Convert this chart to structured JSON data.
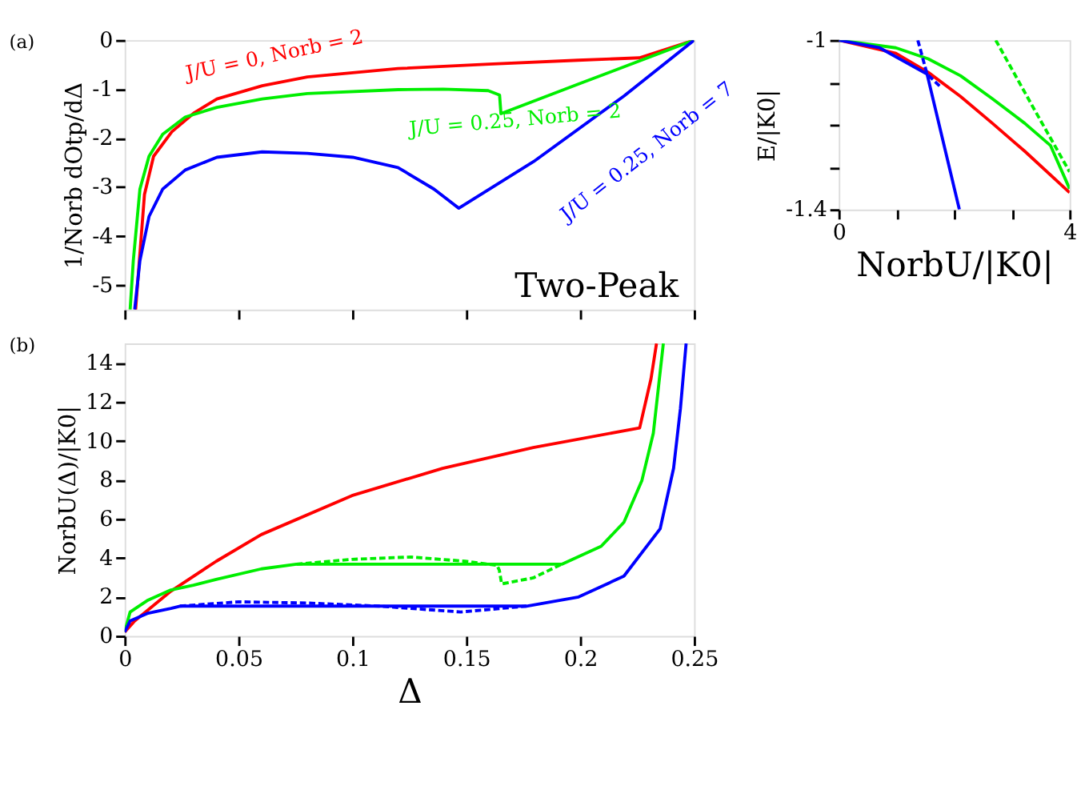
{
  "chart_data": [
    {
      "type": "line",
      "ylabel": "1/Norb dOtp/dΔ",
      "annotations": [
        "(a)",
        "Two-Peak"
      ],
      "xlim": [
        0,
        0.25
      ],
      "xticks": [
        0,
        0.05,
        0.1,
        0.15,
        0.2,
        0.25
      ],
      "ylim": [
        -5.5,
        0
      ],
      "yticks": [
        0,
        -1,
        -2,
        -3,
        -4,
        -5
      ],
      "tick_labels": "y",
      "series": [
        {
          "name": "J/U = 0, Norb = 2",
          "color": "#ff0000",
          "line_style": "solid",
          "x": [
            0.0048,
            0.0087,
            0.0127,
            0.0207,
            0.0306,
            0.0405,
            0.0604,
            0.0802,
            0.12,
            0.16,
            0.199,
            0.226,
            0.25
          ],
          "values": [
            -5.5,
            -3.15,
            -2.37,
            -1.87,
            -1.48,
            -1.2,
            -0.93,
            -0.75,
            -0.58,
            -0.49,
            -0.41,
            -0.36,
            0
          ]
        },
        {
          "name": "J/U = 0.25, Norb = 2",
          "color": "#00ee00",
          "line_style": "solid",
          "x": [
            0.0024,
            0.0038,
            0.0067,
            0.0107,
            0.0167,
            0.0266,
            0.0405,
            0.0604,
            0.0802,
            0.12,
            0.1398,
            0.1596,
            0.1646,
            0.1652,
            0.199,
            0.25
          ],
          "values": [
            -5.5,
            -4.5,
            -3.04,
            -2.37,
            -1.92,
            -1.57,
            -1.37,
            -1.2,
            -1.09,
            -1.01,
            -1.0,
            -1.03,
            -1.12,
            -1.5,
            -0.9,
            0
          ]
        },
        {
          "name": "J/U = 0.25, Norb = 7",
          "color": "#0000ff",
          "line_style": "solid",
          "x": [
            0.0044,
            0.0067,
            0.0107,
            0.0167,
            0.0266,
            0.0405,
            0.0604,
            0.0802,
            0.1001,
            0.12,
            0.1358,
            0.1467,
            0.1795,
            0.2192,
            0.25
          ],
          "values": [
            -5.5,
            -4.5,
            -3.6,
            -3.04,
            -2.65,
            -2.39,
            -2.28,
            -2.31,
            -2.39,
            -2.6,
            -3.04,
            -3.43,
            -2.48,
            -1.14,
            0
          ]
        }
      ]
    },
    {
      "type": "line",
      "xlabel": "Δ",
      "ylabel": "NorbU(Δ)/|K0|",
      "annotations": [
        "(b)"
      ],
      "xlim": [
        0,
        0.25
      ],
      "xticks": [
        0,
        0.05,
        0.1,
        0.15,
        0.2,
        0.25
      ],
      "ylim": [
        0,
        15
      ],
      "yticks": [
        0,
        2,
        4,
        6,
        8,
        10,
        12,
        14
      ],
      "series": [
        {
          "color": "#ff0000",
          "line_style": "solid",
          "x": [
            0,
            0.0044,
            0.0203,
            0.0402,
            0.06,
            0.0998,
            0.1396,
            0.1794,
            0.2261,
            0.2311,
            0.2335
          ],
          "values": [
            0.2,
            0.77,
            2.3,
            3.83,
            5.2,
            7.2,
            8.6,
            9.66,
            10.67,
            13.2,
            15
          ]
        },
        {
          "color": "#00ee00",
          "line_style": "solid",
          "x": [
            0,
            0.0024,
            0.0103,
            0.0203,
            0.0302,
            0.0402,
            0.06,
            0.0754,
            0.1919,
            0.2092,
            0.2192,
            0.2271,
            0.2321,
            0.2365
          ],
          "values": [
            0.2,
            1.23,
            1.84,
            2.36,
            2.6,
            2.9,
            3.44,
            3.68,
            3.68,
            4.6,
            5.83,
            7.98,
            10.4,
            15
          ]
        },
        {
          "color": "#00ee00",
          "line_style": "dashed",
          "x": [
            0.0754,
            0.0998,
            0.1257,
            0.1496,
            0.1635,
            0.1645,
            0.1655,
            0.1794,
            0.1919
          ],
          "values": [
            3.68,
            3.93,
            4.05,
            3.83,
            3.62,
            3.37,
            2.67,
            2.98,
            3.68
          ]
        },
        {
          "color": "#0000ff",
          "line_style": "solid",
          "x": [
            0,
            0.0024,
            0.0103,
            0.0203,
            0.0243,
            0.1764,
            0.1993,
            0.2192,
            0.2351,
            0.241,
            0.244,
            0.2465
          ],
          "values": [
            0.2,
            0.77,
            1.17,
            1.41,
            1.53,
            1.53,
            2.0,
            3.07,
            5.5,
            8.6,
            11.66,
            15
          ]
        },
        {
          "color": "#0000ff",
          "line_style": "dashed",
          "x": [
            0.0243,
            0.0501,
            0.08,
            0.1118,
            0.1476,
            0.1764
          ],
          "values": [
            1.53,
            1.75,
            1.69,
            1.53,
            1.23,
            1.53
          ]
        }
      ]
    },
    {
      "type": "line",
      "xlabel": "NorbU/|K0|",
      "ylabel": "E/|K0|",
      "xlim": [
        0,
        4
      ],
      "xticks": [
        0,
        {
          "value": 1,
          "label": null
        },
        {
          "value": 2,
          "label": null
        },
        {
          "value": 3,
          "label": null
        },
        4
      ],
      "ylim": [
        -1.4,
        -1
      ],
      "yticks": [
        -1,
        {
          "value": -1.1,
          "label": null
        },
        {
          "value": -1.2,
          "label": null
        },
        {
          "value": -1.3,
          "label": null
        },
        -1.4
      ],
      "series": [
        {
          "color": "#ff0000",
          "line_style": "solid",
          "x": [
            0,
            0.99,
            1.55,
            2.11,
            2.66,
            3.22,
            4
          ],
          "values": [
            -1,
            -1.031,
            -1.076,
            -1.133,
            -1.196,
            -1.262,
            -1.36
          ]
        },
        {
          "color": "#00ee00",
          "line_style": "solid",
          "x": [
            0,
            0.99,
            1.55,
            2.11,
            2.66,
            3.22,
            3.67,
            4
          ],
          "values": [
            -1,
            -1.018,
            -1.044,
            -1.084,
            -1.138,
            -1.196,
            -1.249,
            -1.351
          ]
        },
        {
          "color": "#00ee00",
          "line_style": "dashed",
          "x": [
            2.72,
            3.39,
            4
          ],
          "values": [
            -1.0,
            -1.164,
            -1.311
          ]
        },
        {
          "color": "#0000ff",
          "line_style": "solid",
          "x": [
            0,
            0.71,
            1.53,
            2.09
          ],
          "values": [
            -1,
            -1.018,
            -1.08,
            -1.4
          ]
        },
        {
          "color": "#0000ff",
          "line_style": "dashed",
          "x": [
            1.37,
            1.53,
            1.77
          ],
          "values": [
            -1.0,
            -1.08,
            -1.111
          ]
        }
      ]
    }
  ]
}
